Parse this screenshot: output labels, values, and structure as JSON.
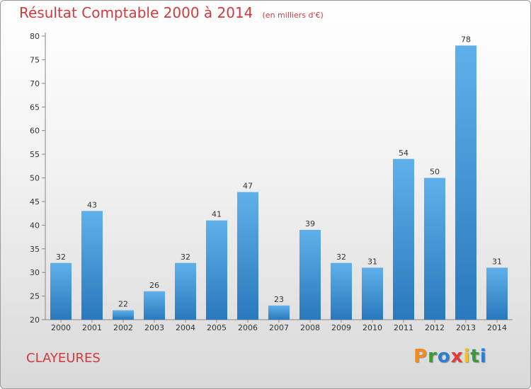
{
  "chart_data": {
    "type": "bar",
    "title": "Résultat Comptable 2000 à 2014",
    "subtitle": "(en milliers d'€)",
    "categories": [
      "2000",
      "2001",
      "2002",
      "2003",
      "2004",
      "2005",
      "2006",
      "2007",
      "2008",
      "2009",
      "2010",
      "2011",
      "2012",
      "2013",
      "2014"
    ],
    "values": [
      32,
      43,
      22,
      26,
      32,
      41,
      47,
      23,
      39,
      32,
      31,
      54,
      50,
      78,
      31
    ],
    "ylim": [
      20,
      80
    ],
    "yticks": [
      20,
      25,
      30,
      35,
      40,
      45,
      50,
      55,
      60,
      65,
      70,
      75,
      80
    ],
    "grid": false,
    "bar_color": "#3a8fd6"
  },
  "footer": {
    "place": "CLAYEURES",
    "logo_letters": [
      "P",
      "r",
      "o",
      "x",
      "i",
      "t",
      "i"
    ],
    "logo_colors": [
      "#f28c1e",
      "#3a9a3a",
      "#2a7fd4",
      "#e23b3b",
      "#f2c21e",
      "#3a9a3a",
      "#2a7fd4"
    ]
  }
}
